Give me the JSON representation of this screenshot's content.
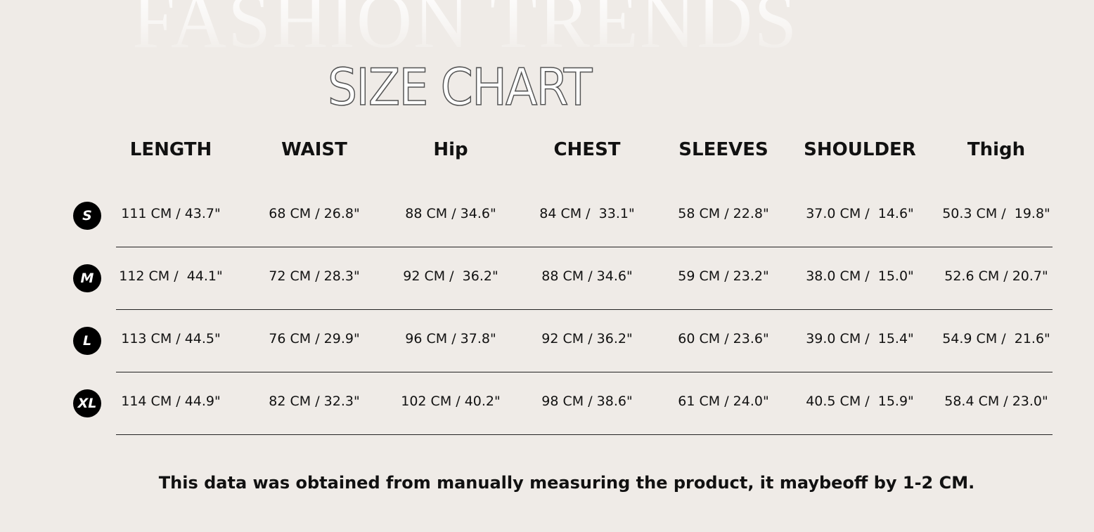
{
  "background_title": "FASHION TRENDS",
  "title": "SIZE CHART",
  "columns": [
    "LENGTH",
    "WAIST",
    "Hip",
    "CHEST",
    "SLEEVES",
    "SHOULDER",
    "Thigh"
  ],
  "rows": [
    {
      "size": "S",
      "values": [
        "111 CM / 43.7\"",
        "68 CM / 26.8\"",
        "88 CM / 34.6\"",
        "84 CM /  33.1\"",
        "58 CM / 22.8\"",
        "37.0 CM /  14.6\"",
        "50.3 CM /  19.8\""
      ]
    },
    {
      "size": "M",
      "values": [
        "112 CM /  44.1\"",
        "72 CM / 28.3\"",
        "92 CM /  36.2\"",
        "88 CM / 34.6\"",
        "59 CM / 23.2\"",
        "38.0 CM /  15.0\"",
        "52.6 CM / 20.7\""
      ]
    },
    {
      "size": "L",
      "values": [
        "113 CM / 44.5\"",
        "76 CM / 29.9\"",
        "96 CM / 37.8\"",
        "92 CM / 36.2\"",
        "60 CM / 23.6\"",
        "39.0 CM /  15.4\"",
        "54.9 CM /  21.6\""
      ]
    },
    {
      "size": "XL",
      "values": [
        "114 CM / 44.9\"",
        "82 CM / 32.3\"",
        "102 CM / 40.2\"",
        "98 CM / 38.6\"",
        "61 CM / 24.0\"",
        "40.5 CM /  15.9\"",
        "58.4 CM / 23.0\""
      ]
    }
  ],
  "note": "This data was obtained from manually measuring the product, it maybeoff by 1-2 CM.",
  "colors": {
    "background": "#efebe7",
    "badge": "#000000",
    "text": "#111111"
  }
}
